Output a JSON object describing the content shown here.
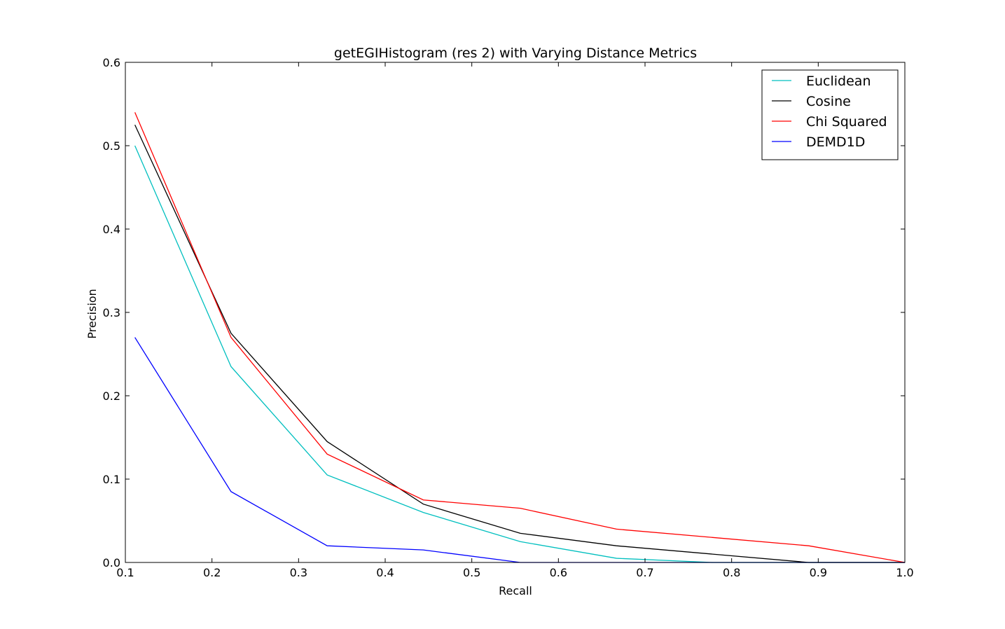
{
  "chart_data": {
    "type": "line",
    "title": "getEGIHistogram (res 2) with Varying Distance Metrics",
    "xlabel": "Recall",
    "ylabel": "Precision",
    "xlim": [
      0.1,
      1.0
    ],
    "ylim": [
      0.0,
      0.6
    ],
    "xticks": [
      "0.1",
      "0.2",
      "0.3",
      "0.4",
      "0.5",
      "0.6",
      "0.7",
      "0.8",
      "0.9",
      "1.0"
    ],
    "yticks": [
      "0.0",
      "0.1",
      "0.2",
      "0.3",
      "0.4",
      "0.5",
      "0.6"
    ],
    "grid": false,
    "legend_position": "top-right",
    "x": [
      0.111,
      0.222,
      0.333,
      0.444,
      0.556,
      0.667,
      0.778,
      0.889,
      1.0
    ],
    "series": [
      {
        "name": "Euclidean",
        "color": "#00bfbf",
        "values": [
          0.5,
          0.235,
          0.105,
          0.06,
          0.025,
          0.005,
          0.0,
          0.0,
          0.0
        ]
      },
      {
        "name": "Cosine",
        "color": "#000000",
        "values": [
          0.525,
          0.275,
          0.145,
          0.07,
          0.035,
          0.02,
          0.01,
          0.0,
          0.0
        ]
      },
      {
        "name": "Chi Squared",
        "color": "#ff0000",
        "values": [
          0.54,
          0.27,
          0.13,
          0.075,
          0.065,
          0.04,
          0.03,
          0.02,
          0.0
        ]
      },
      {
        "name": "DEMD1D",
        "color": "#0000ff",
        "values": [
          0.27,
          0.085,
          0.02,
          0.015,
          0.0,
          0.0,
          0.0,
          0.0,
          0.0
        ]
      }
    ]
  }
}
